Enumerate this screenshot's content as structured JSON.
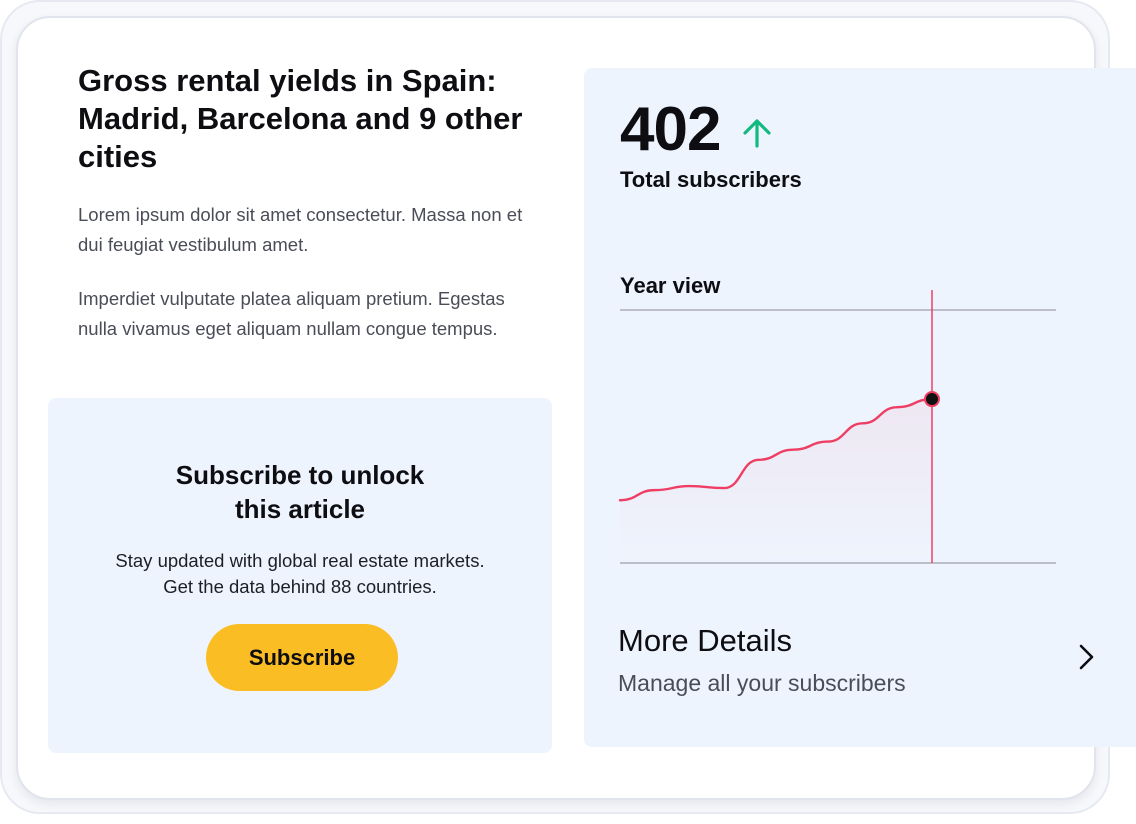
{
  "article": {
    "title": "Gross rental yields in Spain: Madrid, Barcelona and 9 other cities",
    "paragraphs": [
      "Lorem ipsum dolor sit amet consectetur. Massa non et dui feugiat vestibulum amet.",
      "Imperdiet vulputate platea aliquam pretium. Egestas nulla vivamus eget aliquam nullam congue tempus."
    ]
  },
  "paywall": {
    "title_lines": [
      "Subscribe to unlock",
      "this article"
    ],
    "text_lines": [
      "Stay updated with global real estate markets.",
      "Get the data behind 88 countries."
    ],
    "button_label": "Subscribe",
    "button_color": "#fbbd24",
    "background": "#eef4fd"
  },
  "stats": {
    "total": "402",
    "trend_icon": "arrow-up-icon",
    "trend_color": "#12b981",
    "label": "Total subscribers",
    "view_label": "Year view",
    "line_color": "#ef3e64"
  },
  "chart_data": {
    "type": "line",
    "series": [
      {
        "values": [
          0.06,
          0.11,
          0.13,
          0.12,
          0.26,
          0.31,
          0.35,
          0.44,
          0.52,
          0.56
        ]
      }
    ],
    "highlight_index": 9,
    "xlim": [
      0,
      9
    ],
    "ylim": [
      -0.25,
      1
    ],
    "grid": false
  },
  "details": {
    "title": "More Details",
    "subtitle": "Manage all your subscribers",
    "icon": "chevron-right-icon"
  }
}
